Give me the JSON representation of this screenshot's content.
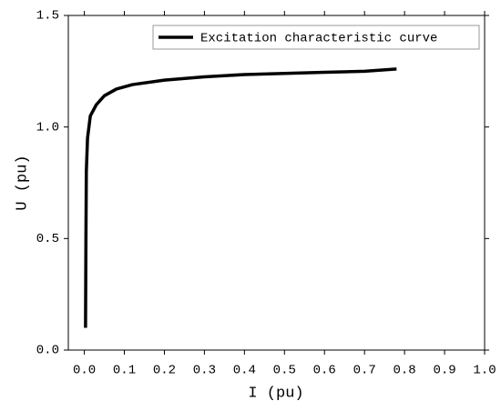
{
  "chart_data": {
    "type": "line",
    "xlabel": "I (pu)",
    "ylabel": "U (pu)",
    "x": [
      0.003,
      0.004,
      0.005,
      0.008,
      0.015,
      0.03,
      0.05,
      0.08,
      0.12,
      0.2,
      0.3,
      0.4,
      0.5,
      0.6,
      0.7,
      0.78
    ],
    "series": [
      {
        "name": "Excitation characteristic curve",
        "color": "#000000",
        "values": [
          0.1,
          0.5,
          0.8,
          0.95,
          1.05,
          1.1,
          1.14,
          1.17,
          1.19,
          1.21,
          1.225,
          1.235,
          1.24,
          1.245,
          1.25,
          1.26
        ]
      }
    ],
    "xlim": [
      -0.04,
      1.0
    ],
    "xticks": [
      {
        "value": 0,
        "label": "0.0"
      },
      0.1,
      0.2,
      0.3,
      0.4,
      0.5,
      0.6,
      0.7,
      0.8,
      0.9,
      {
        "value": 1,
        "label": "1.0"
      }
    ],
    "ylim": [
      0,
      1.5
    ],
    "yticks": [
      {
        "value": 0,
        "label": "0.0"
      },
      0.5,
      {
        "value": 1,
        "label": "1.0"
      },
      1.5
    ],
    "legend": "upper-right"
  }
}
